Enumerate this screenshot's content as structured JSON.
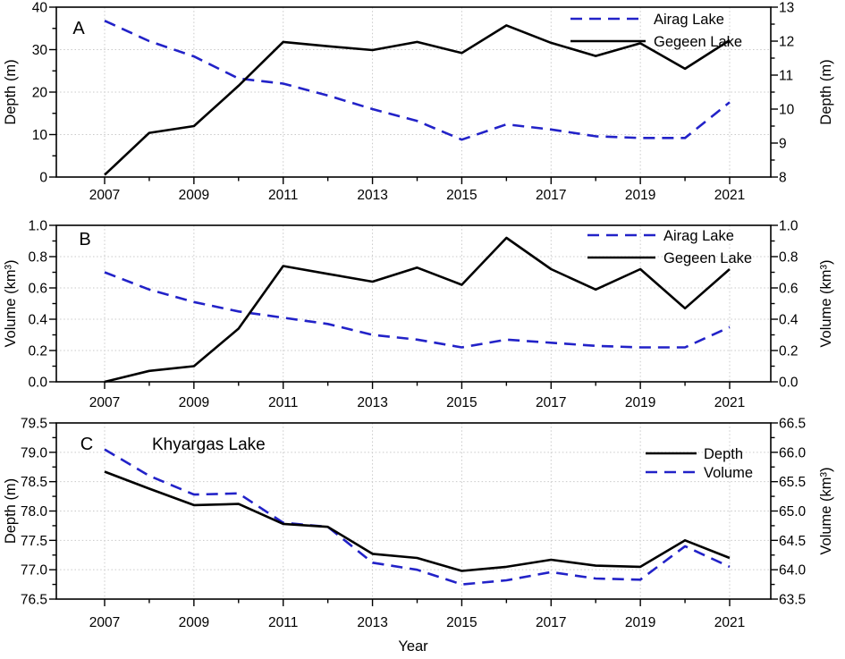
{
  "colors": {
    "blue": "#2222c8",
    "black": "#000000",
    "grid": "#c9c9c9",
    "background": "#ffffff"
  },
  "chart_data": {
    "type": "line",
    "xlabel": "Year",
    "years": [
      2007,
      2008,
      2009,
      2010,
      2011,
      2012,
      2013,
      2014,
      2015,
      2016,
      2017,
      2018,
      2019,
      2020,
      2021
    ],
    "x_tick_labels": [
      2007,
      2009,
      2011,
      2013,
      2015,
      2017,
      2019,
      2021
    ],
    "grid": true,
    "panels": [
      {
        "letter": "A",
        "annotation": null,
        "left_axis": {
          "label": "Depth (m)",
          "min": 0,
          "max": 40,
          "major_step": 10,
          "minor_step": 5,
          "decimals": 0,
          "color": "#000000"
        },
        "right_axis": {
          "label": "Depth (m)",
          "min": 8,
          "max": 13,
          "major_step": 1,
          "minor_step": 0.5,
          "decimals": 0,
          "color": "#2222c8"
        },
        "legend": [
          {
            "name": "Airag Lake",
            "line": "dashed",
            "color": "#2222c8"
          },
          {
            "name": "Gegeen Lake",
            "line": "solid",
            "color": "#000000"
          }
        ],
        "series": [
          {
            "name": "Airag Lake",
            "axis": "right",
            "line": "dashed",
            "color": "#2222c8",
            "values": [
              12.6,
              12.0,
              11.55,
              10.9,
              10.75,
              10.4,
              10.0,
              9.65,
              9.1,
              9.55,
              9.4,
              9.2,
              9.15,
              9.15,
              10.2
            ]
          },
          {
            "name": "Gegeen Lake",
            "axis": "left",
            "line": "solid",
            "color": "#000000",
            "values": [
              0.5,
              10.4,
              12.0,
              21.5,
              31.8,
              30.8,
              29.9,
              31.8,
              29.2,
              35.7,
              31.6,
              28.5,
              31.5,
              25.5,
              32.2
            ]
          }
        ]
      },
      {
        "letter": "B",
        "annotation": null,
        "left_axis": {
          "label": "Volume (km³)",
          "min": 0,
          "max": 1.0,
          "major_step": 0.2,
          "minor_step": 0.1,
          "decimals": 1,
          "color": "#000000"
        },
        "right_axis": {
          "label": "Volume (km³)",
          "min": 0,
          "max": 1.0,
          "major_step": 0.2,
          "minor_step": 0.1,
          "decimals": 1,
          "color": "#2222c8"
        },
        "legend": [
          {
            "name": "Airag Lake",
            "line": "dashed",
            "color": "#2222c8"
          },
          {
            "name": "Gegeen Lake",
            "line": "solid",
            "color": "#000000"
          }
        ],
        "series": [
          {
            "name": "Airag Lake",
            "axis": "right",
            "line": "dashed",
            "color": "#2222c8",
            "values": [
              0.7,
              0.59,
              0.51,
              0.45,
              0.41,
              0.37,
              0.3,
              0.27,
              0.22,
              0.27,
              0.25,
              0.23,
              0.22,
              0.22,
              0.35
            ]
          },
          {
            "name": "Gegeen Lake",
            "axis": "left",
            "line": "solid",
            "color": "#000000",
            "values": [
              0.0,
              0.07,
              0.1,
              0.34,
              0.74,
              0.69,
              0.64,
              0.73,
              0.62,
              0.92,
              0.72,
              0.59,
              0.72,
              0.47,
              0.72
            ]
          }
        ]
      },
      {
        "letter": "C",
        "annotation": "Khyargas Lake",
        "left_axis": {
          "label": "Depth (m)",
          "min": 76.5,
          "max": 79.5,
          "major_step": 0.5,
          "minor_step": 0.25,
          "decimals": 1,
          "color": "#000000"
        },
        "right_axis": {
          "label": "Volume (km³)",
          "min": 63.5,
          "max": 66.5,
          "major_step": 0.5,
          "minor_step": 0.25,
          "decimals": 1,
          "color": "#2222c8"
        },
        "legend": [
          {
            "name": "Depth",
            "line": "solid",
            "color": "#000000"
          },
          {
            "name": "Volume",
            "line": "dashed",
            "color": "#2222c8"
          }
        ],
        "series": [
          {
            "name": "Volume",
            "axis": "right",
            "line": "dashed",
            "color": "#2222c8",
            "values": [
              66.05,
              65.6,
              65.28,
              65.3,
              64.8,
              64.73,
              64.12,
              64.0,
              63.75,
              63.82,
              63.96,
              63.85,
              63.83,
              64.4,
              64.05
            ]
          },
          {
            "name": "Depth",
            "axis": "left",
            "line": "solid",
            "color": "#000000",
            "values": [
              78.67,
              78.38,
              78.1,
              78.12,
              77.78,
              77.73,
              77.27,
              77.2,
              76.98,
              77.05,
              77.17,
              77.07,
              77.05,
              77.5,
              77.2
            ]
          }
        ]
      }
    ]
  }
}
